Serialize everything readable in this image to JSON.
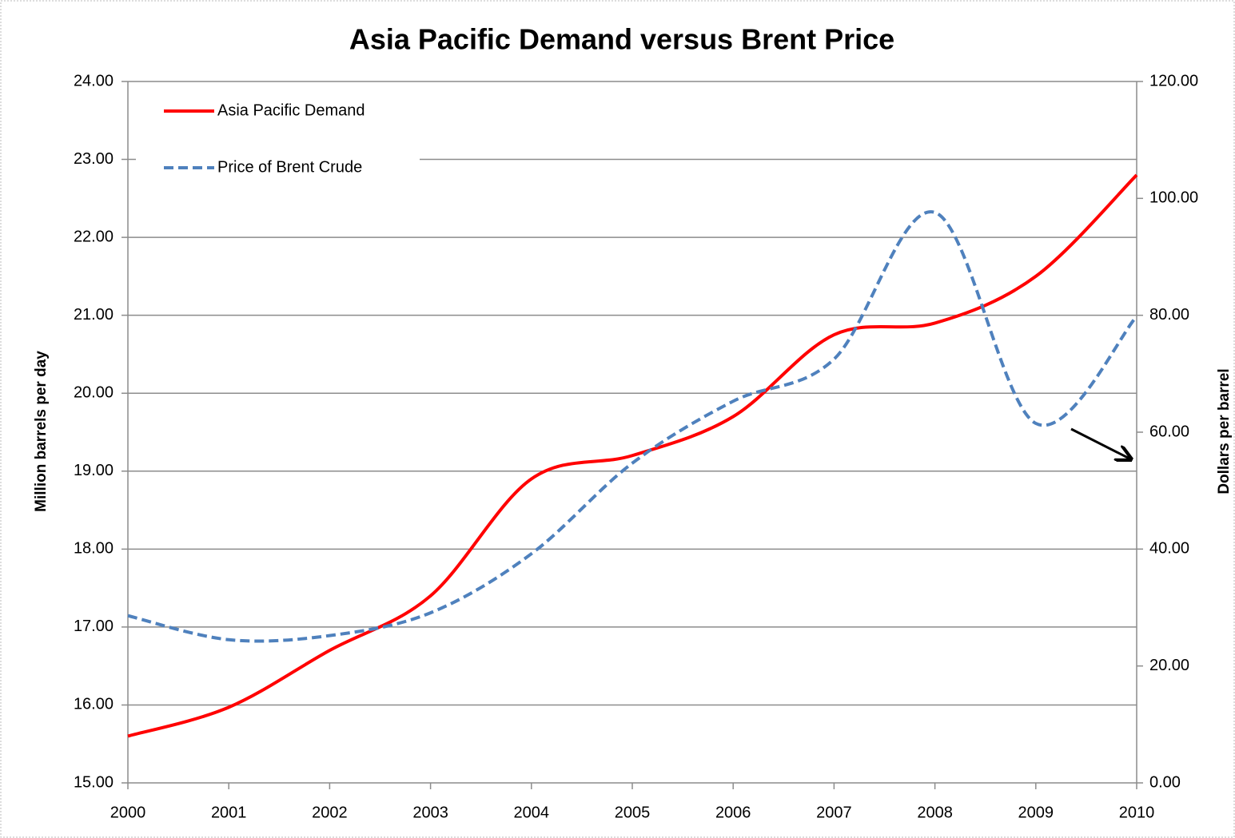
{
  "chart_data": {
    "type": "line",
    "title": "Asia Pacific Demand versus Brent Price",
    "y_label": "Million barrels per day",
    "y2_label": "Dollars per barrel",
    "x": [
      2000,
      2001,
      2002,
      2003,
      2004,
      2005,
      2006,
      2007,
      2008,
      2009,
      2010
    ],
    "xlim": [
      2000,
      2010
    ],
    "xticks": [
      2000,
      2001,
      2002,
      2003,
      2004,
      2005,
      2006,
      2007,
      2008,
      2009,
      2010
    ],
    "ylim": [
      15,
      24
    ],
    "yticks": [
      {
        "value": 15,
        "label": "15.00"
      },
      {
        "value": 16,
        "label": "16.00"
      },
      {
        "value": 17,
        "label": "17.00"
      },
      {
        "value": 18,
        "label": "18.00"
      },
      {
        "value": 19,
        "label": "19.00"
      },
      {
        "value": 20,
        "label": "20.00"
      },
      {
        "value": 21,
        "label": "21.00"
      },
      {
        "value": 22,
        "label": "22.00"
      },
      {
        "value": 23,
        "label": "23.00"
      },
      {
        "value": 24,
        "label": "24.00"
      }
    ],
    "y2lim": [
      0,
      120
    ],
    "y2ticks": [
      {
        "value": 0,
        "label": "0.00"
      },
      {
        "value": 20,
        "label": "20.00"
      },
      {
        "value": 40,
        "label": "40.00"
      },
      {
        "value": 60,
        "label": "60.00"
      },
      {
        "value": 80,
        "label": "80.00"
      },
      {
        "value": 100,
        "label": "100.00"
      },
      {
        "value": 120,
        "label": "120.00"
      }
    ],
    "grid": true,
    "legend": "upper left",
    "series": [
      {
        "name": "Asia Pacific Demand",
        "color": "#ff0000",
        "dash": "solid",
        "values": [
          15.6,
          15.97,
          16.7,
          17.4,
          18.9,
          19.2,
          19.7,
          20.75,
          20.9,
          21.5,
          22.8
        ]
      },
      {
        "name": "Price of Brent Crude",
        "color": "#4f81bd",
        "dash": "dashed",
        "axis": "y2",
        "values": [
          28.6,
          24.5,
          25.2,
          29.1,
          39.2,
          54.7,
          65.3,
          72.5,
          97.6,
          61.5,
          79.8
        ]
      }
    ]
  }
}
